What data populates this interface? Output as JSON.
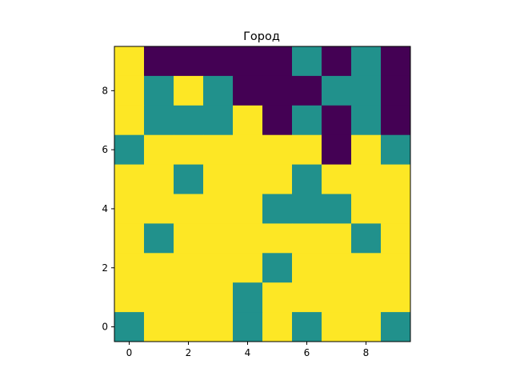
{
  "chart_data": {
    "type": "heatmap",
    "title": "Город",
    "xlabel": "",
    "ylabel": "",
    "x_ticks": [
      "0",
      "2",
      "4",
      "6",
      "8"
    ],
    "y_ticks": [
      "0",
      "2",
      "4",
      "6",
      "8"
    ],
    "x_tick_values": [
      0,
      2,
      4,
      6,
      8
    ],
    "y_tick_values": [
      0,
      2,
      4,
      6,
      8
    ],
    "xlim": [
      -0.5,
      9.5
    ],
    "ylim": [
      -0.5,
      9.5
    ],
    "origin": "lower",
    "colormap": "viridis",
    "grid": false,
    "value_colors": {
      "0": "#440154",
      "1": "#21918c",
      "2": "#fde725"
    },
    "rows_top_to_bottom": [
      [
        2,
        0,
        0,
        0,
        0,
        0,
        1,
        0,
        1,
        0
      ],
      [
        2,
        1,
        2,
        1,
        0,
        0,
        0,
        1,
        1,
        0
      ],
      [
        2,
        1,
        1,
        1,
        2,
        0,
        1,
        0,
        1,
        0
      ],
      [
        1,
        2,
        2,
        2,
        2,
        2,
        2,
        0,
        2,
        1
      ],
      [
        2,
        2,
        1,
        2,
        2,
        2,
        1,
        2,
        2,
        2
      ],
      [
        2,
        2,
        2,
        2,
        2,
        1,
        1,
        1,
        2,
        2
      ],
      [
        2,
        1,
        2,
        2,
        2,
        2,
        2,
        2,
        1,
        2
      ],
      [
        2,
        2,
        2,
        2,
        2,
        1,
        2,
        2,
        2,
        2
      ],
      [
        2,
        2,
        2,
        2,
        1,
        2,
        2,
        2,
        2,
        2
      ],
      [
        1,
        2,
        2,
        2,
        1,
        2,
        1,
        2,
        2,
        1
      ]
    ]
  }
}
